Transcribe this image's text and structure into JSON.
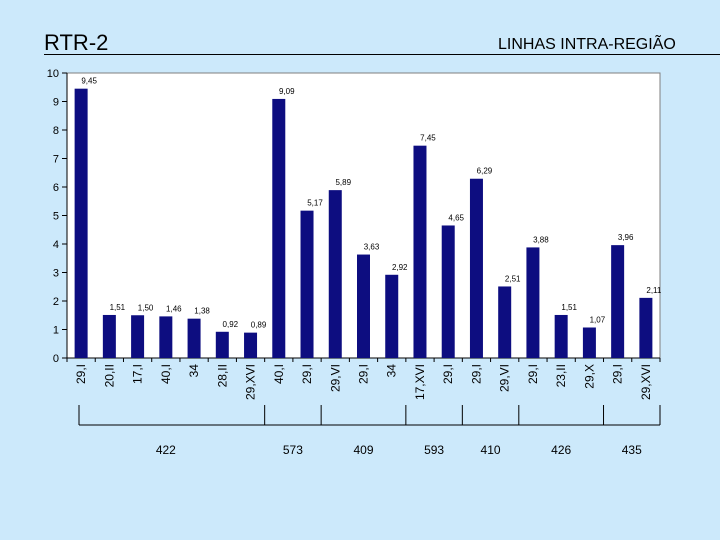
{
  "header": {
    "title": "RTR-2",
    "subtitle": "LINHAS INTRA-REGIÃO"
  },
  "chart_data": {
    "type": "bar",
    "title": "RTR-2",
    "subtitle": "LINHAS INTRA-REGIÃO",
    "categories": [
      "29,I",
      "20,II",
      "17,I",
      "40,I",
      "34",
      "28,II",
      "29,XVI",
      "40,I",
      "29,I",
      "29,VI",
      "29,I",
      "34",
      "17,XVI",
      "29,I",
      "29,I",
      "29,VI",
      "29,I",
      "23,II",
      "29,X",
      "29,I",
      "29,XVI"
    ],
    "values": [
      9.45,
      1.51,
      1.5,
      1.46,
      1.38,
      0.92,
      0.89,
      9.09,
      5.17,
      5.89,
      3.63,
      2.92,
      7.45,
      4.65,
      6.29,
      2.51,
      3.88,
      1.51,
      1.07,
      3.96,
      2.11
    ],
    "value_labels": [
      "9,45",
      "1,51",
      "1,50",
      "1,46",
      "1,38",
      "0,92",
      "0,89",
      "9,09",
      "5,17",
      "5,89",
      "3,63",
      "2,92",
      "7,45",
      "4,65",
      "6,29",
      "2,51",
      "3,88",
      "1,51",
      "1,07",
      "3,96",
      "2,11"
    ],
    "y_ticks": [
      "0",
      "1",
      "2",
      "3",
      "4",
      "5",
      "6",
      "7",
      "8",
      "9",
      "10"
    ],
    "ylim": [
      0,
      10
    ],
    "groups": [
      {
        "label": "422",
        "start": 0,
        "end": 6
      },
      {
        "label": "573",
        "start": 7,
        "end": 8
      },
      {
        "label": "409",
        "start": 9,
        "end": 11
      },
      {
        "label": "593",
        "start": 12,
        "end": 13
      },
      {
        "label": "410",
        "start": 14,
        "end": 15
      },
      {
        "label": "426",
        "start": 16,
        "end": 18
      },
      {
        "label": "435",
        "start": 19,
        "end": 20
      }
    ],
    "bar_color": "#0d0d80",
    "plot_background": "#ffffff",
    "grid": false,
    "legend": "none"
  }
}
